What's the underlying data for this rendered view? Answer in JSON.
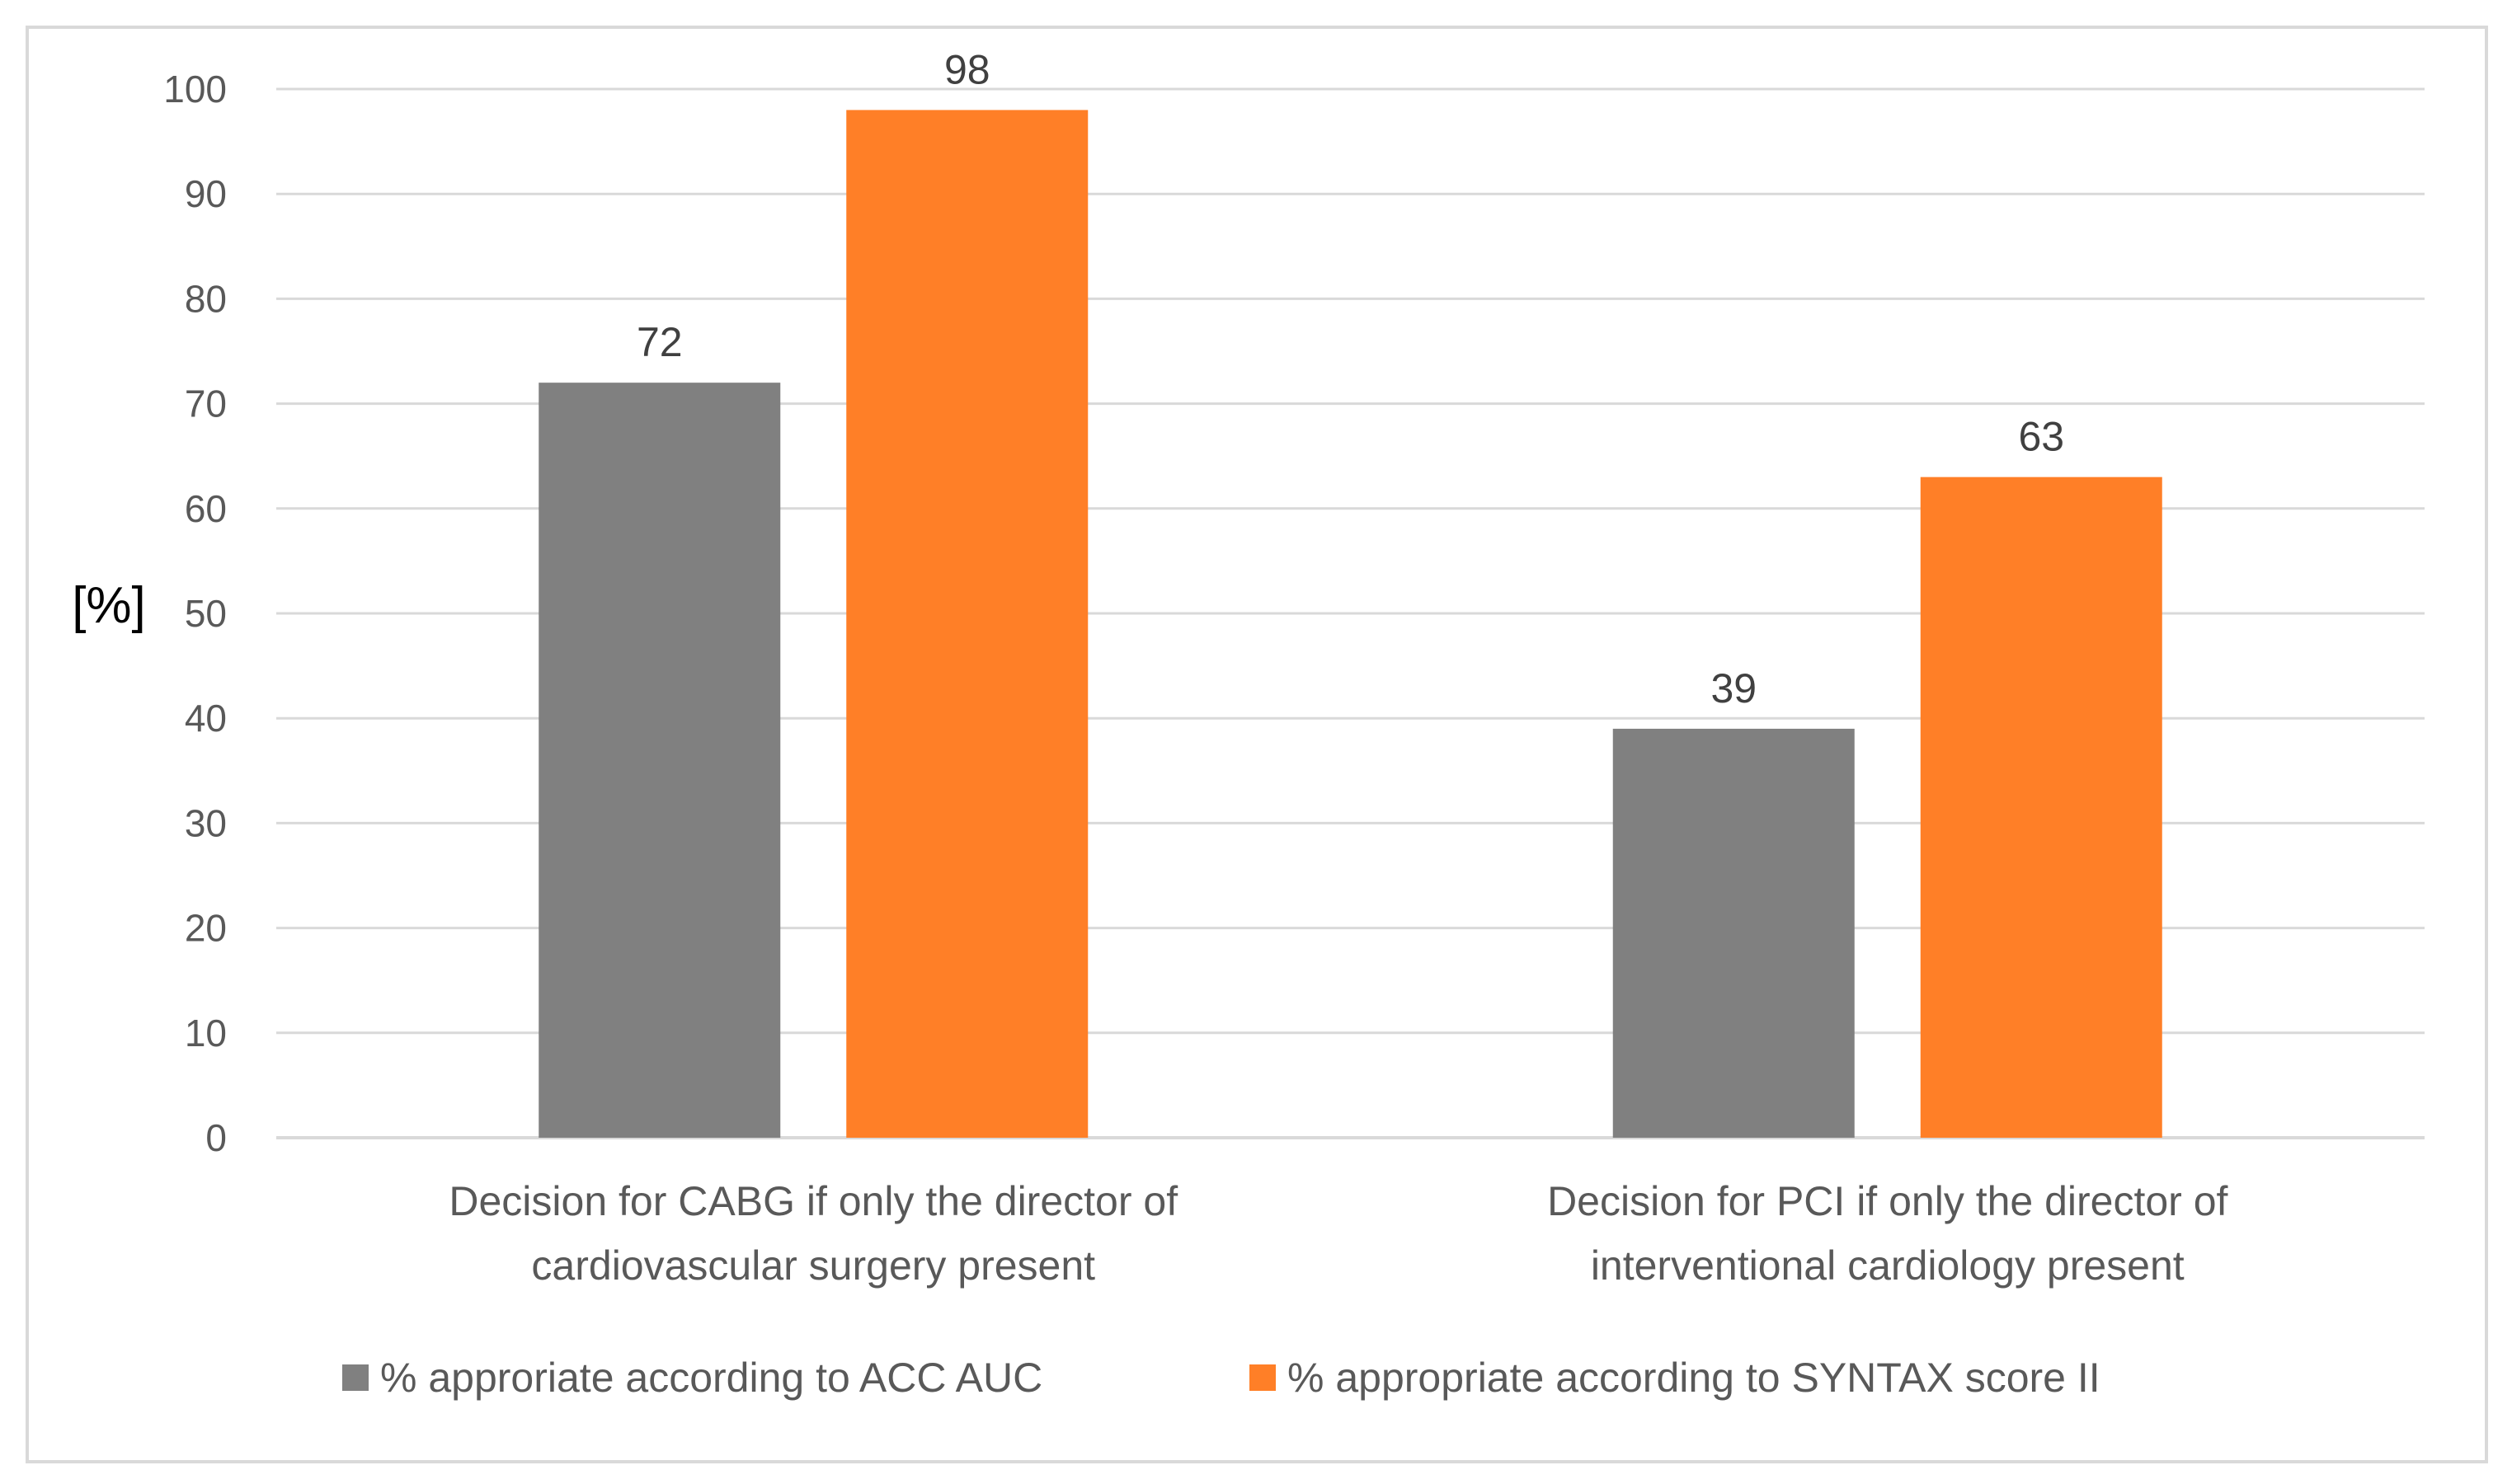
{
  "chart_data": {
    "type": "bar",
    "title": "",
    "xlabel": "",
    "ylabel": "[%]",
    "ylim": [
      0,
      100
    ],
    "yticks": [
      0,
      10,
      20,
      30,
      40,
      50,
      60,
      70,
      80,
      90,
      100
    ],
    "grid": true,
    "legend_position": "bottom",
    "categories": [
      [
        "Decision for CABG if only the director of",
        "cardiovascular surgery present"
      ],
      [
        "Decision for PCI if only the director of",
        "interventional cardiology present"
      ]
    ],
    "series": [
      {
        "name": "% approriate according to ACC AUC",
        "color": "#808080",
        "values": [
          72,
          39
        ]
      },
      {
        "name": "% appropriate according to SYNTAX score II",
        "color": "#FF7F27",
        "values": [
          98,
          63
        ]
      }
    ],
    "colors": {
      "gridline": "#D9D9D9",
      "axis": "#D9D9D9",
      "frame": "#D9D9D9"
    }
  }
}
